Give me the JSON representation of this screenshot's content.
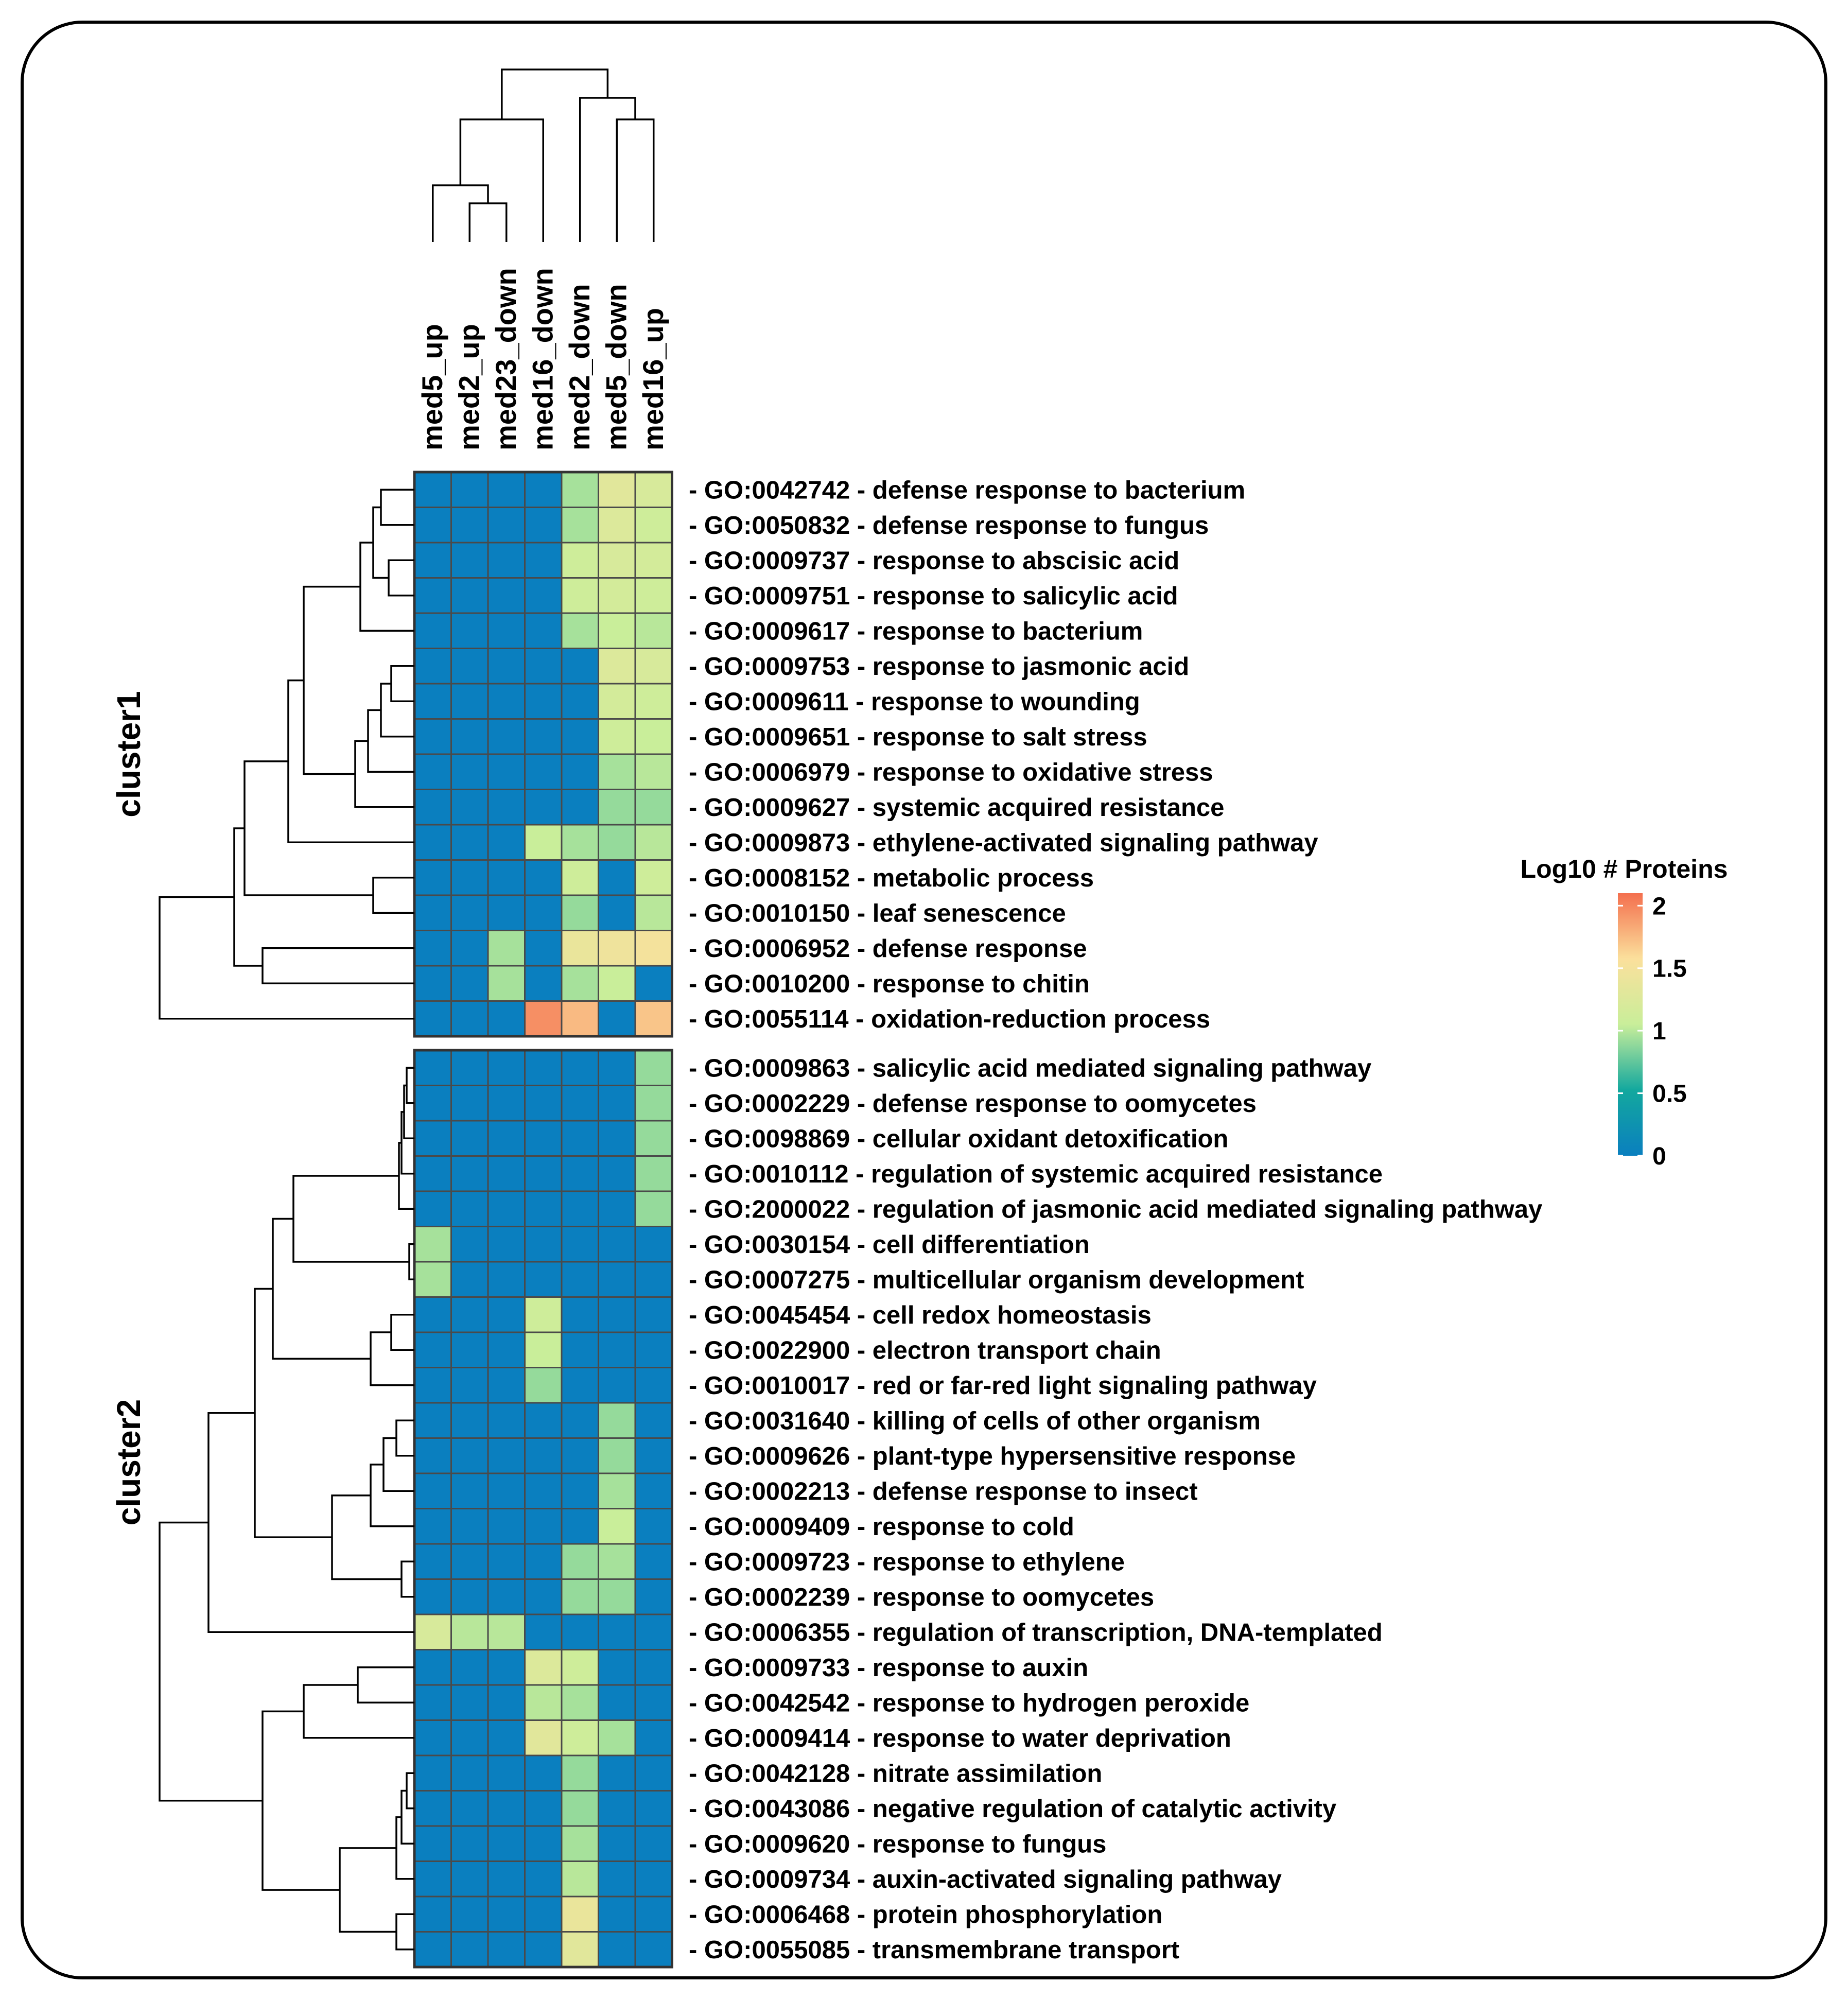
{
  "chart_data": {
    "type": "heatmap",
    "title": "",
    "columns": [
      "med5_up",
      "med2_up",
      "med23_down",
      "med16_down",
      "med2_down",
      "med5_down",
      "med16_up"
    ],
    "legend": {
      "title": "Log10 # Proteins",
      "ticks": [
        "2",
        "1.5",
        "1",
        "0.5",
        "0"
      ],
      "tick_values": [
        2,
        1.5,
        1,
        0.5,
        0
      ],
      "range": [
        0,
        2.1
      ],
      "colors": [
        "#0A7FBF",
        "#13A89E",
        "#C9EE9A",
        "#FBE09C",
        "#F46F4E"
      ]
    },
    "clusters": [
      {
        "label": "cluster1",
        "rows": [
          {
            "label": "- GO:0042742 - defense response to bacterium",
            "values": [
              0,
              0,
              0,
              0,
              0.95,
              1.3,
              1.2
            ]
          },
          {
            "label": "- GO:0050832 - defense response to fungus",
            "values": [
              0,
              0,
              0,
              0,
              0.95,
              1.25,
              1.1
            ]
          },
          {
            "label": "- GO:0009737 - response to abscisic acid",
            "values": [
              0,
              0,
              0,
              0,
              1.1,
              1.2,
              1.15
            ]
          },
          {
            "label": "- GO:0009751 - response to salicylic acid",
            "values": [
              0,
              0,
              0,
              0,
              1.1,
              1.15,
              1.1
            ]
          },
          {
            "label": "- GO:0009617 - response to bacterium",
            "values": [
              0,
              0,
              0,
              0,
              0.95,
              1.05,
              1.0
            ]
          },
          {
            "label": "- GO:0009753 - response to jasmonic acid",
            "values": [
              0,
              0,
              0,
              0,
              0,
              1.25,
              1.2
            ]
          },
          {
            "label": "- GO:0009611 - response to wounding",
            "values": [
              0,
              0,
              0,
              0,
              0,
              1.15,
              1.1
            ]
          },
          {
            "label": "- GO:0009651 - response to salt stress",
            "values": [
              0,
              0,
              0,
              0,
              0,
              1.1,
              1.05
            ]
          },
          {
            "label": "- GO:0006979 - response to oxidative stress",
            "values": [
              0,
              0,
              0,
              0,
              0,
              0.95,
              1.0
            ]
          },
          {
            "label": "- GO:0009627 - systemic acquired resistance",
            "values": [
              0,
              0,
              0,
              0,
              0,
              0.9,
              0.9
            ]
          },
          {
            "label": "- GO:0009873 - ethylene-activated signaling pathway",
            "values": [
              0,
              0,
              0,
              1.05,
              0.95,
              0.9,
              1.0
            ]
          },
          {
            "label": "- GO:0008152 - metabolic process",
            "values": [
              0,
              0,
              0,
              0,
              1.1,
              0,
              1.1
            ]
          },
          {
            "label": "- GO:0010150 - leaf senescence",
            "values": [
              0,
              0,
              0,
              0,
              0.9,
              0,
              1.0
            ]
          },
          {
            "label": "- GO:0006952 - defense response",
            "values": [
              0,
              0,
              0.95,
              0,
              1.4,
              1.45,
              1.5
            ]
          },
          {
            "label": "- GO:0010200 - response to chitin",
            "values": [
              0,
              0,
              0.95,
              0,
              0.95,
              1.05,
              0
            ]
          },
          {
            "label": "- GO:0055114 - oxidation-reduction process",
            "values": [
              0,
              0,
              0,
              1.95,
              1.75,
              0,
              1.7
            ]
          }
        ]
      },
      {
        "label": "cluster2",
        "rows": [
          {
            "label": "- GO:0009863 - salicylic acid mediated signaling pathway",
            "values": [
              0,
              0,
              0,
              0,
              0,
              0,
              0.9
            ]
          },
          {
            "label": "- GO:0002229 - defense response to oomycetes",
            "values": [
              0,
              0,
              0,
              0,
              0,
              0,
              0.9
            ]
          },
          {
            "label": "- GO:0098869 - cellular oxidant detoxification",
            "values": [
              0,
              0,
              0,
              0,
              0,
              0,
              0.9
            ]
          },
          {
            "label": "- GO:0010112 - regulation of systemic acquired resistance",
            "values": [
              0,
              0,
              0,
              0,
              0,
              0,
              0.9
            ]
          },
          {
            "label": "- GO:2000022 - regulation of jasmonic acid mediated signaling pathway",
            "values": [
              0,
              0,
              0,
              0,
              0,
              0,
              0.9
            ]
          },
          {
            "label": "- GO:0030154 - cell differentiation",
            "values": [
              0.95,
              0,
              0,
              0,
              0,
              0,
              0
            ]
          },
          {
            "label": "- GO:0007275 - multicellular organism development",
            "values": [
              0.95,
              0,
              0,
              0,
              0,
              0,
              0
            ]
          },
          {
            "label": "- GO:0045454 - cell redox homeostasis",
            "values": [
              0,
              0,
              0,
              1.1,
              0,
              0,
              0
            ]
          },
          {
            "label": "- GO:0022900 - electron transport chain",
            "values": [
              0,
              0,
              0,
              1.05,
              0,
              0,
              0
            ]
          },
          {
            "label": "- GO:0010017 - red or far-red light signaling pathway",
            "values": [
              0,
              0,
              0,
              0.9,
              0,
              0,
              0
            ]
          },
          {
            "label": "- GO:0031640 - killing of cells of other organism",
            "values": [
              0,
              0,
              0,
              0,
              0,
              0.9,
              0
            ]
          },
          {
            "label": "- GO:0009626 - plant-type hypersensitive response",
            "values": [
              0,
              0,
              0,
              0,
              0,
              0.9,
              0
            ]
          },
          {
            "label": "- GO:0002213 - defense response to insect",
            "values": [
              0,
              0,
              0,
              0,
              0,
              0.95,
              0
            ]
          },
          {
            "label": "- GO:0009409 - response to cold",
            "values": [
              0,
              0,
              0,
              0,
              0,
              1.05,
              0
            ]
          },
          {
            "label": "- GO:0009723 - response to ethylene",
            "values": [
              0,
              0,
              0,
              0,
              0.9,
              0.95,
              0
            ]
          },
          {
            "label": "- GO:0002239 - response to oomycetes",
            "values": [
              0,
              0,
              0,
              0,
              0.9,
              0.9,
              0
            ]
          },
          {
            "label": "- GO:0006355 - regulation of transcription, DNA-templated",
            "values": [
              1.2,
              1.0,
              1.0,
              0,
              0,
              0,
              0
            ]
          },
          {
            "label": "- GO:0009733 - response to auxin",
            "values": [
              0,
              0,
              0,
              1.25,
              1.1,
              0,
              0
            ]
          },
          {
            "label": "- GO:0042542 - response to hydrogen peroxide",
            "values": [
              0,
              0,
              0,
              1.0,
              0.95,
              0,
              0
            ]
          },
          {
            "label": "- GO:0009414 - response to water deprivation",
            "values": [
              0,
              0,
              0,
              1.3,
              1.1,
              0.95,
              0
            ]
          },
          {
            "label": "- GO:0042128 - nitrate assimilation",
            "values": [
              0,
              0,
              0,
              0,
              0.9,
              0,
              0
            ]
          },
          {
            "label": "- GO:0043086 - negative regulation of catalytic activity",
            "values": [
              0,
              0,
              0,
              0,
              0.9,
              0,
              0
            ]
          },
          {
            "label": "- GO:0009620 - response to fungus",
            "values": [
              0,
              0,
              0,
              0,
              0.95,
              0,
              0
            ]
          },
          {
            "label": "- GO:0009734 - auxin-activated signaling pathway",
            "values": [
              0,
              0,
              0,
              0,
              1.0,
              0,
              0
            ]
          },
          {
            "label": "- GO:0006468 - protein phosphorylation",
            "values": [
              0,
              0,
              0,
              0,
              1.4,
              0,
              0
            ]
          },
          {
            "label": "- GO:0055085 - transmembrane transport",
            "values": [
              0,
              0,
              0,
              0,
              1.3,
              0,
              0
            ]
          }
        ]
      }
    ]
  }
}
